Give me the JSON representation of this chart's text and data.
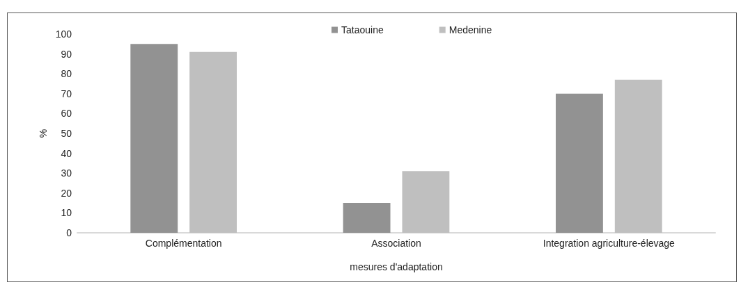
{
  "chart_data": {
    "type": "bar",
    "xlabel": "mesures d'adaptation",
    "ylabel": "%",
    "categories": [
      "Complémentation",
      "Association",
      "Integration agriculture-élevage"
    ],
    "series": [
      {
        "name": "Tataouine",
        "color": "#929292",
        "values": [
          95,
          15,
          70
        ]
      },
      {
        "name": "Medenine",
        "color": "#bfbfbf",
        "values": [
          91,
          31,
          77
        ]
      }
    ],
    "ylim": [
      0,
      100
    ],
    "yticks": [
      0,
      10,
      20,
      30,
      40,
      50,
      60,
      70,
      80,
      90,
      100
    ],
    "grid": false,
    "legend": "top"
  }
}
